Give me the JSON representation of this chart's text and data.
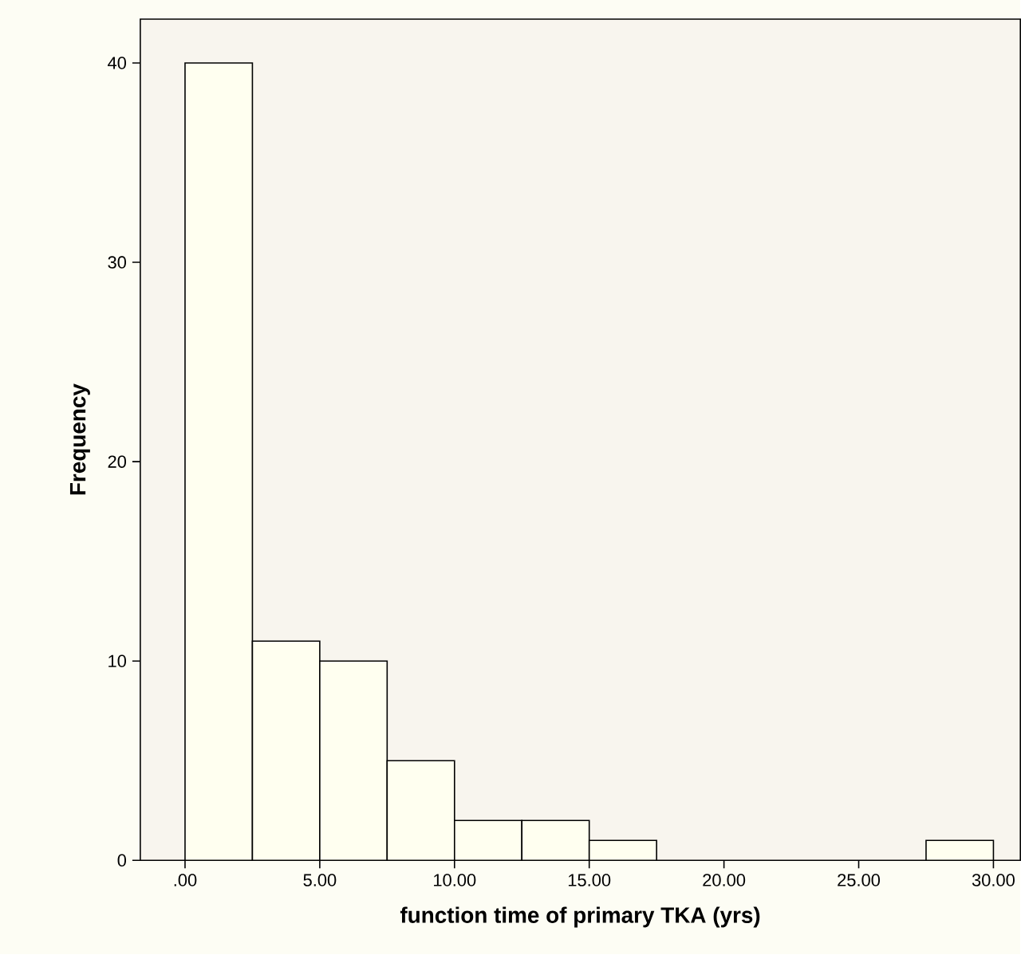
{
  "chart_data": {
    "type": "histogram",
    "xlabel": "function time of primary TKA (yrs)",
    "ylabel": "Frequency",
    "bins": [
      0,
      2.5,
      5,
      7.5,
      10,
      12.5,
      15,
      17.5,
      20,
      22.5,
      25,
      27.5,
      30
    ],
    "values": [
      40,
      11,
      10,
      5,
      2,
      2,
      1,
      0,
      0,
      0,
      0,
      1
    ],
    "color": "#fffff0",
    "xlim": [
      -1.66,
      31.0
    ],
    "ylim": [
      0,
      42.2
    ],
    "xticks": [
      {
        "value": 0,
        "label": ".00"
      },
      {
        "value": 5,
        "label": "5.00"
      },
      {
        "value": 10,
        "label": "10.00"
      },
      {
        "value": 15,
        "label": "15.00"
      },
      {
        "value": 20,
        "label": "20.00"
      },
      {
        "value": 25,
        "label": "25.00"
      },
      {
        "value": 30,
        "label": "30.00"
      }
    ],
    "yticks": [
      0,
      10,
      20,
      30,
      40
    ]
  }
}
